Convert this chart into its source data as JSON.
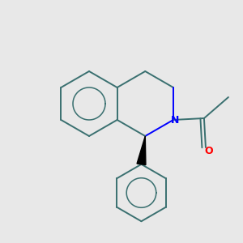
{
  "bg_color": "#e8e8e8",
  "bond_color": "#3a7070",
  "n_color": "#0000ff",
  "o_color": "#ff0000",
  "wedge_color": "#000000",
  "line_width": 1.4,
  "figsize": [
    3.0,
    3.0
  ],
  "dpi": 100
}
